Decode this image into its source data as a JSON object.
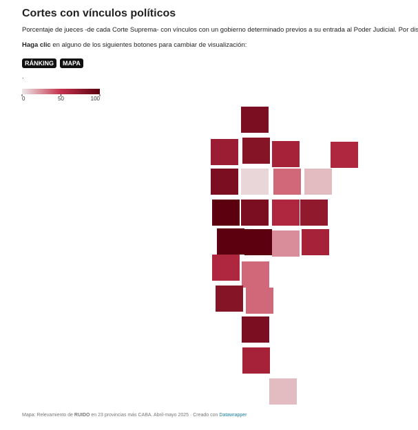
{
  "header": {
    "title": "Cortes con vínculos políticos",
    "subtitle": "Porcentaje de jueces -de cada Corte Suprema- con vínculos con un gobierno determinado previos a su entrada al Poder Judicial. Por distrito",
    "instruction_bold": "Haga clic",
    "instruction_rest": " en alguno de los siguientes botones para cambiar de visualización:"
  },
  "buttons": [
    "RÁNKING",
    "MAPA"
  ],
  "note": ".",
  "chart_data": {
    "type": "map",
    "values": [
      85,
      70,
      80,
      65,
      60,
      85,
      5,
      35,
      12,
      100,
      85,
      60,
      75,
      100,
      100,
      25,
      65,
      60,
      35,
      80,
      35,
      85,
      65,
      12
    ],
    "colors": [
      "#ede8e8",
      "#c4314b",
      "#5c000f"
    ],
    "xlim": [
      0,
      100
    ],
    "xticks": [
      0,
      50,
      100
    ]
  },
  "footer": {
    "prefix": "Mapa: Relevamiento de ",
    "bold": "RUIDO",
    "middle": " en 23 provincias más CABA. Abril-mayo 2025 · Creado con ",
    "link": "Datawrapper"
  }
}
